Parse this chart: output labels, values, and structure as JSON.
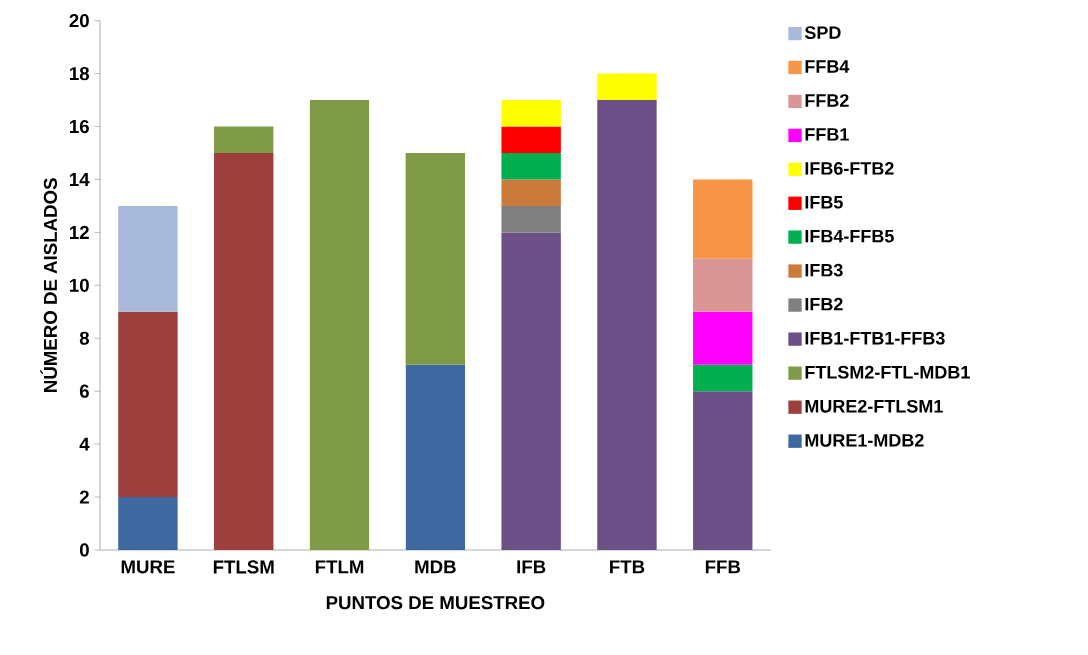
{
  "chart_data": {
    "type": "bar",
    "stacked": true,
    "xlabel": "PUNTOS DE MUESTREO",
    "ylabel": "NÚMERO DE AISLADOS",
    "categories": [
      "MURE",
      "FTLSM",
      "FTLM",
      "MDB",
      "IFB",
      "FTB",
      "FFB"
    ],
    "ylim": [
      0,
      20
    ],
    "yticks": [
      0,
      2,
      4,
      6,
      8,
      10,
      12,
      14,
      16,
      18,
      20
    ],
    "grid": false,
    "legend": "right",
    "series": [
      {
        "name": "MURE1-MDB2",
        "color": "#4068a0",
        "values": [
          2,
          null,
          null,
          7,
          null,
          null,
          null
        ]
      },
      {
        "name": "MURE2-FTLSM1",
        "color": "#9c3f3d",
        "values": [
          7,
          15,
          null,
          null,
          null,
          null,
          null
        ]
      },
      {
        "name": "FTLSM2-FTL-MDB1",
        "color": "#7f9b48",
        "values": [
          null,
          1,
          17,
          8,
          null,
          null,
          null
        ]
      },
      {
        "name": "IFB1-FTB1-FFB3",
        "color": "#6b5088",
        "values": [
          null,
          null,
          null,
          null,
          12,
          17,
          6
        ]
      },
      {
        "name": "IFB2",
        "color": "#808080",
        "values": [
          null,
          null,
          null,
          null,
          1,
          null,
          null
        ]
      },
      {
        "name": "IFB3",
        "color": "#cc7a3a",
        "values": [
          null,
          null,
          null,
          null,
          1,
          null,
          null
        ]
      },
      {
        "name": "IFB4-FFB5",
        "color": "#00b050",
        "values": [
          null,
          null,
          null,
          null,
          1,
          null,
          1
        ]
      },
      {
        "name": "IFB5",
        "color": "#ff0000",
        "values": [
          null,
          null,
          null,
          null,
          1,
          null,
          null
        ]
      },
      {
        "name": "IFB6-FTB2",
        "color": "#ffff00",
        "values": [
          null,
          null,
          null,
          null,
          1,
          1,
          null
        ]
      },
      {
        "name": "FFB1",
        "color": "#ff00ff",
        "values": [
          null,
          null,
          null,
          null,
          null,
          null,
          2
        ]
      },
      {
        "name": "FFB2",
        "color": "#d99694",
        "values": [
          null,
          null,
          null,
          null,
          null,
          null,
          2
        ]
      },
      {
        "name": "FFB4",
        "color": "#f79646",
        "values": [
          null,
          null,
          null,
          null,
          null,
          null,
          3
        ]
      },
      {
        "name": "SPD",
        "color": "#a9b9d9",
        "values": [
          4,
          null,
          null,
          null,
          null,
          null,
          null
        ]
      }
    ]
  }
}
